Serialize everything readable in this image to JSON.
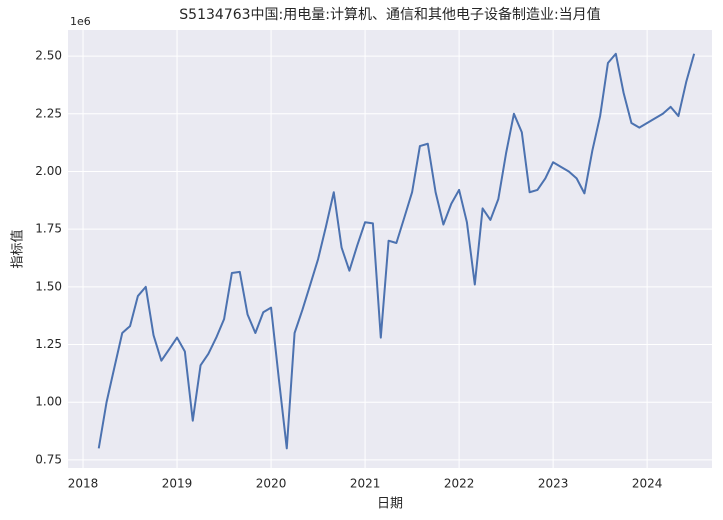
{
  "chart_data": {
    "type": "line",
    "title": "S5134763中国:用电量:计算机、通信和其他电子设备制造业:当月值",
    "xlabel": "日期",
    "ylabel": "指标值",
    "offset_label": "1e6",
    "x": [
      2018.167,
      2018.25,
      2018.333,
      2018.417,
      2018.5,
      2018.583,
      2018.667,
      2018.75,
      2018.833,
      2018.917,
      2019.0,
      2019.083,
      2019.167,
      2019.25,
      2019.333,
      2019.417,
      2019.5,
      2019.583,
      2019.667,
      2019.75,
      2019.833,
      2019.917,
      2020.0,
      2020.083,
      2020.167,
      2020.25,
      2020.333,
      2020.417,
      2020.5,
      2020.583,
      2020.667,
      2020.75,
      2020.833,
      2020.917,
      2021.0,
      2021.083,
      2021.167,
      2021.25,
      2021.333,
      2021.417,
      2021.5,
      2021.583,
      2021.667,
      2021.75,
      2021.833,
      2021.917,
      2022.0,
      2022.083,
      2022.167,
      2022.25,
      2022.333,
      2022.417,
      2022.5,
      2022.583,
      2022.667,
      2022.75,
      2022.833,
      2022.917,
      2023.0,
      2023.083,
      2023.167,
      2023.25,
      2023.333,
      2023.417,
      2023.5,
      2023.583,
      2023.667,
      2023.75,
      2023.833,
      2023.917,
      2024.0,
      2024.083,
      2024.167,
      2024.25,
      2024.333,
      2024.417,
      2024.5
    ],
    "series": [
      {
        "name": "指标值",
        "color": "#4c72b0",
        "values": [
          0.8,
          1.0,
          1.15,
          1.3,
          1.33,
          1.46,
          1.5,
          1.29,
          1.18,
          1.23,
          1.28,
          1.22,
          0.92,
          1.16,
          1.21,
          1.28,
          1.36,
          1.56,
          1.565,
          1.38,
          1.3,
          1.39,
          1.41,
          1.1,
          0.8,
          1.3,
          1.4,
          1.51,
          1.62,
          1.76,
          1.91,
          1.67,
          1.57,
          1.68,
          1.78,
          1.775,
          1.28,
          1.7,
          1.69,
          1.8,
          1.91,
          2.11,
          2.12,
          1.91,
          1.77,
          1.86,
          1.92,
          1.78,
          1.51,
          1.84,
          1.79,
          1.88,
          2.08,
          2.25,
          2.17,
          1.91,
          1.92,
          1.97,
          2.04,
          2.02,
          2.0,
          1.97,
          1.905,
          2.09,
          2.24,
          2.47,
          2.51,
          2.34,
          2.21,
          2.19,
          2.21,
          2.23,
          2.25,
          2.28,
          2.24,
          2.39,
          2.51
        ]
      }
    ],
    "xlim": [
      2017.84,
      2024.69
    ],
    "xticks": [
      2018,
      2019,
      2020,
      2021,
      2022,
      2023,
      2024
    ],
    "ylim": [
      0.715,
      2.613
    ],
    "yticks": [
      {
        "value": 0.75,
        "label": "0.75"
      },
      {
        "value": 1.0,
        "label": "1.00"
      },
      {
        "value": 1.25,
        "label": "1.25"
      },
      {
        "value": 1.5,
        "label": "1.50"
      },
      {
        "value": 1.75,
        "label": "1.75"
      },
      {
        "value": 2.0,
        "label": "2.00"
      },
      {
        "value": 2.25,
        "label": "2.25"
      },
      {
        "value": 2.5,
        "label": "2.50"
      }
    ],
    "grid": true
  }
}
